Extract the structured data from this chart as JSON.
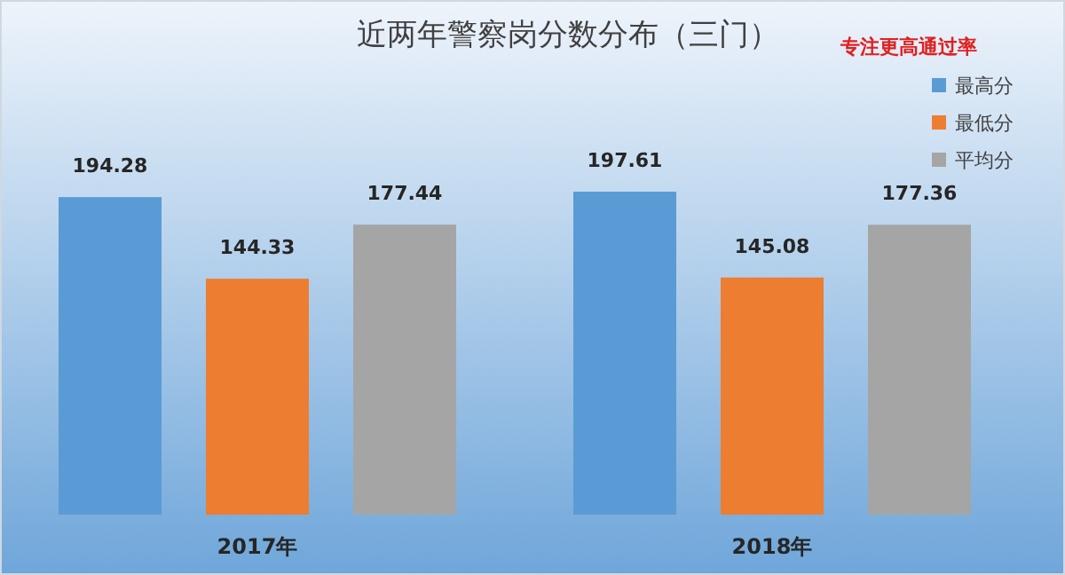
{
  "chart_data": {
    "type": "bar",
    "title": "近两年警察岗分数分布（三门）",
    "annotations": [
      "专注更高通过率"
    ],
    "categories": [
      "2017年",
      "2018年"
    ],
    "series": [
      {
        "name": "最高分",
        "color": "#5b9bd5",
        "values": [
          194.28,
          197.61
        ]
      },
      {
        "name": "最低分",
        "color": "#ed7d31",
        "values": [
          144.33,
          145.08
        ]
      },
      {
        "name": "平均分",
        "color": "#a5a5a5",
        "values": [
          177.44,
          177.36
        ]
      }
    ],
    "data_labels": true,
    "legend": "top right"
  }
}
